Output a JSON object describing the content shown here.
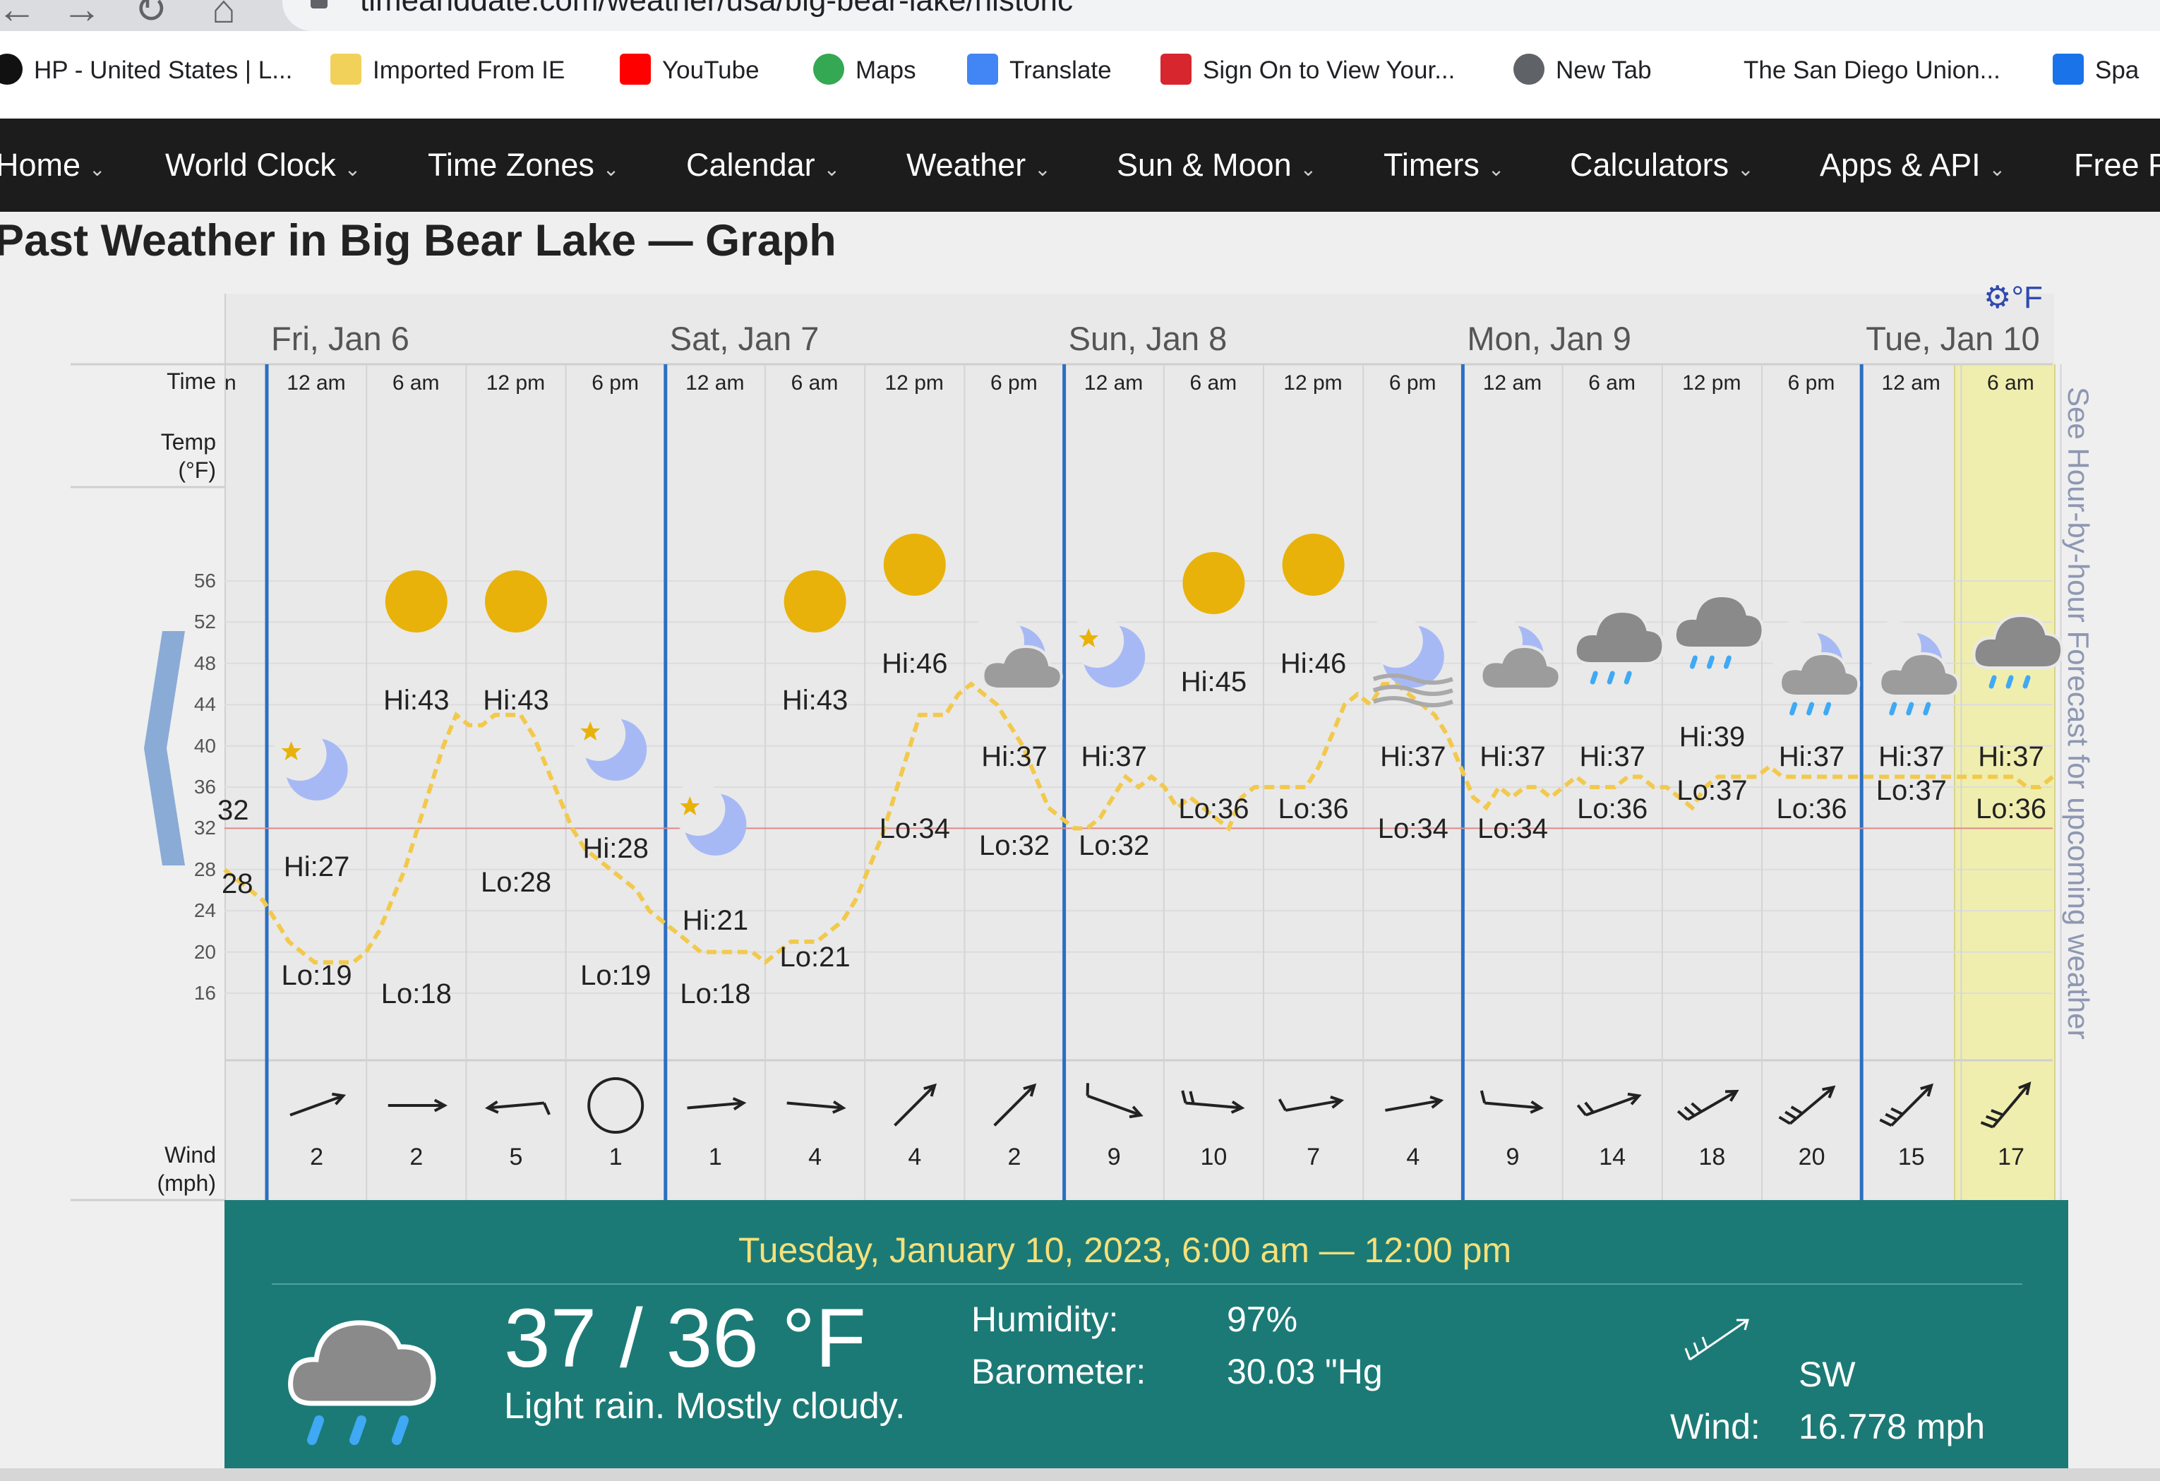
{
  "browser": {
    "url": "timeanddate.com/weather/usa/big-bear-lake/historic",
    "bookmarks": [
      {
        "label": "HP - United States | L...",
        "icon": "hp-icon"
      },
      {
        "label": "Imported From IE",
        "icon": "folder-icon"
      },
      {
        "label": "YouTube",
        "icon": "youtube-icon"
      },
      {
        "label": "Maps",
        "icon": "maps-pin-icon"
      },
      {
        "label": "Translate",
        "icon": "translate-icon"
      },
      {
        "label": "Sign On to View Your...",
        "icon": "bank-icon"
      },
      {
        "label": "New Tab",
        "icon": "globe-icon"
      },
      {
        "label": "The San Diego Union...",
        "icon": "ut-icon"
      },
      {
        "label": "Spa",
        "icon": "app-icon"
      }
    ]
  },
  "nav": {
    "items": [
      "Home",
      "World Clock",
      "Time Zones",
      "Calendar",
      "Weather",
      "Sun & Moon",
      "Timers",
      "Calculators",
      "Apps & API",
      "Free F"
    ]
  },
  "page": {
    "title": "Past Weather in Big Bear Lake — Graph"
  },
  "graph": {
    "unit_setting": "°F",
    "side_link": "See Hour-by-hour Forecast for upcoming weather",
    "labels": {
      "time": "Time",
      "time_partial": "n",
      "temp": "Temp",
      "temp_unit": "(°F)",
      "wind": "Wind",
      "wind_unit": "(mph)"
    },
    "days": [
      "Fri, Jan 6",
      "Sat, Jan 7",
      "Sun, Jan 8",
      "Mon, Jan 9",
      "Tue, Jan 10"
    ],
    "times": [
      "12 am",
      "6 am",
      "12 pm",
      "6 pm",
      "12 am",
      "6 am",
      "12 pm",
      "6 pm",
      "12 am",
      "6 am",
      "12 pm",
      "6 pm",
      "12 am",
      "6 am",
      "12 pm",
      "6 pm",
      "12 am",
      "6 am"
    ],
    "y_ticks": [
      56,
      52,
      48,
      44,
      40,
      36,
      32,
      28,
      24,
      20,
      16
    ],
    "freezing_line": 32,
    "left_partial": {
      "lo": "28",
      "hi": "32"
    },
    "periods": [
      {
        "hi": "Hi:27",
        "lo": "Lo:19",
        "icon": "moon-star-icon",
        "wind": "2",
        "wind_dir_deg": 70
      },
      {
        "hi": "Hi:43",
        "lo": "Lo:18",
        "icon": "sun-icon",
        "wind": "2",
        "wind_dir_deg": 90
      },
      {
        "hi": "Hi:43",
        "lo": "Lo:28",
        "icon": "sun-icon",
        "wind": "5",
        "wind_dir_deg": 265
      },
      {
        "hi": "Hi:28",
        "lo": "Lo:19",
        "icon": "moon-star-icon",
        "wind": "1",
        "wind_dir_deg": null
      },
      {
        "hi": "Hi:21",
        "lo": "Lo:18",
        "icon": "moon-star-icon",
        "wind": "1",
        "wind_dir_deg": 85
      },
      {
        "hi": "Hi:43",
        "lo": "Lo:21",
        "icon": "sun-icon",
        "wind": "4",
        "wind_dir_deg": 95
      },
      {
        "hi": "Hi:46",
        "lo": "Lo:34",
        "icon": "sun-icon",
        "wind": "4",
        "wind_dir_deg": 45
      },
      {
        "hi": "Hi:37",
        "lo": "Lo:32",
        "icon": "moon-cloud-icon",
        "wind": "2",
        "wind_dir_deg": 45
      },
      {
        "hi": "Hi:37",
        "lo": "Lo:32",
        "icon": "moon-star-icon",
        "wind": "9",
        "wind_dir_deg": 110
      },
      {
        "hi": "Hi:45",
        "lo": "Lo:36",
        "icon": "sun-icon",
        "wind": "10",
        "wind_dir_deg": 95
      },
      {
        "hi": "Hi:46",
        "lo": "Lo:36",
        "icon": "sun-icon",
        "wind": "7",
        "wind_dir_deg": 80
      },
      {
        "hi": "Hi:37",
        "lo": "Lo:34",
        "icon": "moon-fog-icon",
        "wind": "4",
        "wind_dir_deg": 80
      },
      {
        "hi": "Hi:37",
        "lo": "Lo:34",
        "icon": "moon-cloud-icon",
        "wind": "9",
        "wind_dir_deg": 95
      },
      {
        "hi": "Hi:37",
        "lo": "Lo:36",
        "icon": "rain-cloud-icon",
        "wind": "14",
        "wind_dir_deg": 70
      },
      {
        "hi": "Hi:39",
        "lo": "Lo:37",
        "icon": "rain-cloud-icon",
        "wind": "18",
        "wind_dir_deg": 60
      },
      {
        "hi": "Hi:37",
        "lo": "Lo:36",
        "icon": "moon-rain-icon",
        "wind": "20",
        "wind_dir_deg": 50
      },
      {
        "hi": "Hi:37",
        "lo": "Lo:37",
        "icon": "moon-rain-icon",
        "wind": "15",
        "wind_dir_deg": 45
      },
      {
        "hi": "Hi:37",
        "lo": "Lo:36",
        "icon": "rain-cloud-icon",
        "wind": "17",
        "wind_dir_deg": 40
      }
    ],
    "temperature_trace": [
      28,
      27,
      26,
      25,
      23,
      21,
      20,
      19,
      19,
      19,
      19,
      20,
      22,
      25,
      28,
      32,
      36,
      40,
      43,
      42,
      42,
      43,
      43,
      43,
      41,
      38,
      35,
      32,
      30,
      29,
      28,
      27,
      26,
      24,
      23,
      22,
      21,
      20,
      20,
      20,
      20,
      20,
      19,
      20,
      21,
      21,
      21,
      22,
      23,
      25,
      28,
      31,
      35,
      39,
      43,
      43,
      43,
      45,
      46,
      45,
      44,
      42,
      40,
      37,
      34,
      33,
      32,
      32,
      33,
      35,
      37,
      36,
      37,
      36,
      34,
      35,
      34,
      33,
      32,
      35,
      36,
      36,
      36,
      36,
      36,
      38,
      41,
      44,
      45,
      44,
      46,
      46,
      45,
      44,
      43,
      41,
      38,
      35,
      34,
      36,
      35,
      36,
      36,
      35,
      36,
      37,
      36,
      36,
      36,
      37,
      37,
      36,
      36,
      35,
      34,
      36,
      37,
      37,
      37,
      37,
      38,
      37,
      37,
      37,
      37,
      37,
      37,
      37,
      37,
      37,
      37,
      37,
      37,
      37,
      37,
      37,
      37,
      37,
      37,
      37,
      36,
      36,
      37
    ]
  },
  "details": {
    "date_range": "Tuesday, January 10, 2023, 6:00 am — 12:00 pm",
    "temp": "37 / 36 °F",
    "description": "Light rain. Mostly cloudy.",
    "humidity_label": "Humidity:",
    "humidity": "97%",
    "barometer_label": "Barometer:",
    "barometer": "30.03 \"Hg",
    "wind_dir": "SW",
    "wind_label": "Wind:",
    "wind_speed": "16.778 mph",
    "icon": "rain-cloud-icon"
  }
}
